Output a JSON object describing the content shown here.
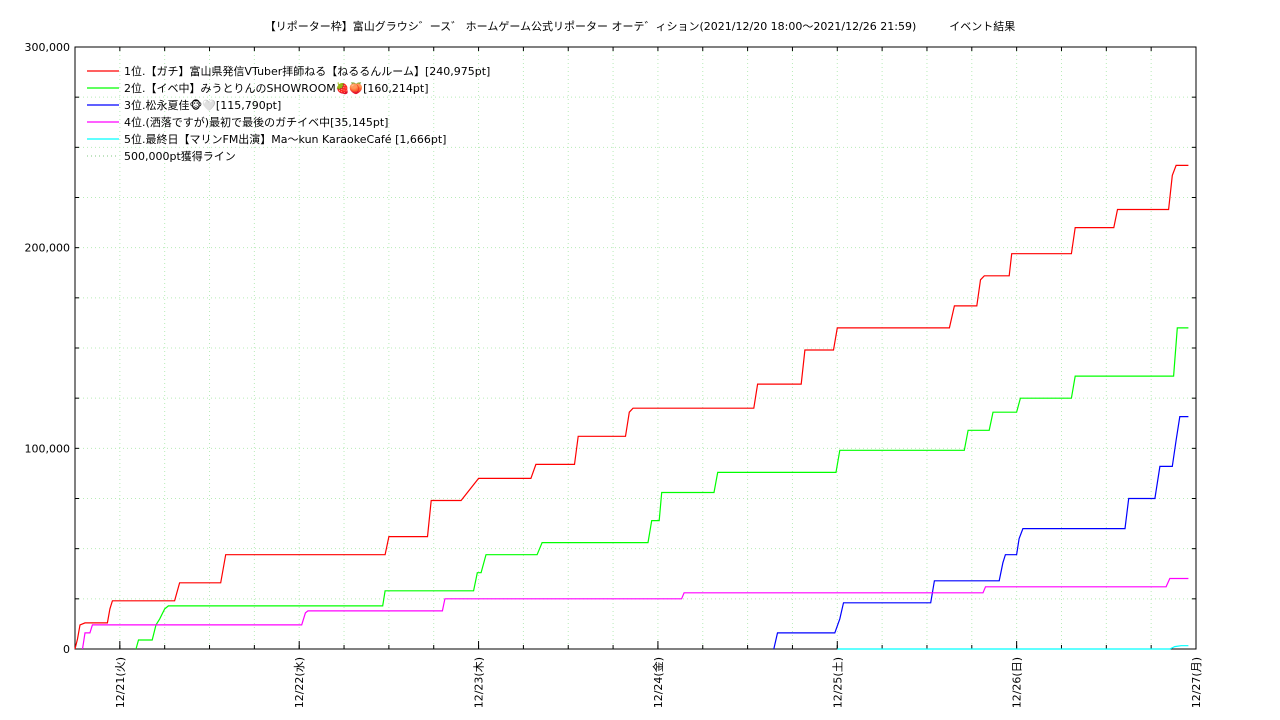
{
  "chart_data": {
    "type": "line",
    "title": "【リポーター枠】富山グラウシ゛ース゛ ホームゲーム公式リポーター オーテ゛ィション(2021/12/20 18:00〜2021/12/26 21:59)　　　イベント結果",
    "xlabel": "",
    "ylabel": "",
    "ylim": [
      0,
      300000
    ],
    "yticks": [
      0,
      100000,
      200000,
      300000
    ],
    "ytick_labels": [
      "0",
      "100,000",
      "200,000",
      "300,000"
    ],
    "xlim": [
      "2021/12/20 18:00",
      "2021/12/27 00:00"
    ],
    "xticks": [
      "2021/12/21 00:00",
      "2021/12/22 00:00",
      "2021/12/23 00:00",
      "2021/12/24 00:00",
      "2021/12/25 00:00",
      "2021/12/26 00:00",
      "2021/12/27 00:00"
    ],
    "xtick_labels": [
      "12/21(火)",
      "12/22(水)",
      "12/23(木)",
      "12/24(金)",
      "12/25(土)",
      "12/26(日)",
      "12/27(月)"
    ],
    "grid": true,
    "legend_position": "top-left",
    "series": [
      {
        "name": "1位.【ガチ】富山県発信VTuber拝師ねる【ねるるんルーム】[240,975pt]",
        "color": "#ff0000",
        "points": [
          [
            "2021/12/20 18:00",
            0
          ],
          [
            "2021/12/20 18:20",
            5000
          ],
          [
            "2021/12/20 18:40",
            12000
          ],
          [
            "2021/12/20 19:20",
            13000
          ],
          [
            "2021/12/20 22:20",
            13000
          ],
          [
            "2021/12/20 22:40",
            20000
          ],
          [
            "2021/12/20 23:00",
            24000
          ],
          [
            "2021/12/21 07:20",
            24000
          ],
          [
            "2021/12/21 08:00",
            33000
          ],
          [
            "2021/12/21 13:30",
            33000
          ],
          [
            "2021/12/21 14:10",
            47000
          ],
          [
            "2021/12/22 11:30",
            47000
          ],
          [
            "2021/12/22 12:00",
            56000
          ],
          [
            "2021/12/22 17:10",
            56000
          ],
          [
            "2021/12/22 17:40",
            74000
          ],
          [
            "2021/12/22 21:40",
            74000
          ],
          [
            "2021/12/23 00:00",
            85000
          ],
          [
            "2021/12/23 07:00",
            85000
          ],
          [
            "2021/12/23 07:40",
            92000
          ],
          [
            "2021/12/23 12:50",
            92000
          ],
          [
            "2021/12/23 13:20",
            106000
          ],
          [
            "2021/12/23 19:40",
            106000
          ],
          [
            "2021/12/23 20:10",
            118000
          ],
          [
            "2021/12/23 20:40",
            120000
          ],
          [
            "2021/12/24 12:50",
            120000
          ],
          [
            "2021/12/24 13:20",
            132000
          ],
          [
            "2021/12/24 19:10",
            132000
          ],
          [
            "2021/12/24 19:40",
            149000
          ],
          [
            "2021/12/24 23:30",
            149000
          ],
          [
            "2021/12/25 00:00",
            160000
          ],
          [
            "2021/12/25 15:00",
            160000
          ],
          [
            "2021/12/25 15:40",
            171000
          ],
          [
            "2021/12/25 18:40",
            171000
          ],
          [
            "2021/12/25 19:10",
            184000
          ],
          [
            "2021/12/25 19:40",
            186000
          ],
          [
            "2021/12/25 23:00",
            186000
          ],
          [
            "2021/12/25 23:20",
            197000
          ],
          [
            "2021/12/26 07:20",
            197000
          ],
          [
            "2021/12/26 07:50",
            210000
          ],
          [
            "2021/12/26 13:00",
            210000
          ],
          [
            "2021/12/26 13:30",
            219000
          ],
          [
            "2021/12/26 20:20",
            219000
          ],
          [
            "2021/12/26 20:50",
            236000
          ],
          [
            "2021/12/26 21:20",
            241000
          ],
          [
            "2021/12/26 22:59",
            241000
          ]
        ]
      },
      {
        "name": "2位.【イベ中】みうとりんのSHOWROOM🍓🍑[160,214pt]",
        "color": "#00ff00",
        "points": [
          [
            "2021/12/21 02:10",
            0
          ],
          [
            "2021/12/21 02:30",
            4500
          ],
          [
            "2021/12/21 04:20",
            4500
          ],
          [
            "2021/12/21 04:50",
            12000
          ],
          [
            "2021/12/21 05:20",
            15000
          ],
          [
            "2021/12/21 06:00",
            20000
          ],
          [
            "2021/12/21 06:30",
            21500
          ],
          [
            "2021/12/22 11:10",
            21500
          ],
          [
            "2021/12/22 11:30",
            29000
          ],
          [
            "2021/12/22 23:20",
            29000
          ],
          [
            "2021/12/22 23:50",
            38000
          ],
          [
            "2021/12/23 00:20",
            38000
          ],
          [
            "2021/12/23 01:00",
            47000
          ],
          [
            "2021/12/23 07:50",
            47000
          ],
          [
            "2021/12/23 08:30",
            53000
          ],
          [
            "2021/12/23 22:40",
            53000
          ],
          [
            "2021/12/23 23:10",
            64000
          ],
          [
            "2021/12/24 00:10",
            64000
          ],
          [
            "2021/12/24 00:30",
            78000
          ],
          [
            "2021/12/24 07:30",
            78000
          ],
          [
            "2021/12/24 08:00",
            88000
          ],
          [
            "2021/12/24 23:50",
            88000
          ],
          [
            "2021/12/25 00:20",
            99000
          ],
          [
            "2021/12/25 17:00",
            99000
          ],
          [
            "2021/12/25 17:30",
            109000
          ],
          [
            "2021/12/25 20:20",
            109000
          ],
          [
            "2021/12/25 20:50",
            118000
          ],
          [
            "2021/12/26 00:00",
            118000
          ],
          [
            "2021/12/26 00:30",
            125000
          ],
          [
            "2021/12/26 07:20",
            125000
          ],
          [
            "2021/12/26 07:50",
            136000
          ],
          [
            "2021/12/26 21:00",
            136000
          ],
          [
            "2021/12/26 21:30",
            160000
          ],
          [
            "2021/12/26 22:59",
            160000
          ]
        ]
      },
      {
        "name": "3位.松永夏佳🐵🤍[115,790pt]",
        "color": "#0000ff",
        "points": [
          [
            "2021/12/24 15:30",
            0
          ],
          [
            "2021/12/24 16:00",
            8000
          ],
          [
            "2021/12/24 23:40",
            8000
          ],
          [
            "2021/12/25 00:20",
            15000
          ],
          [
            "2021/12/25 00:50",
            23000
          ],
          [
            "2021/12/25 12:30",
            23000
          ],
          [
            "2021/12/25 13:00",
            34000
          ],
          [
            "2021/12/25 21:40",
            34000
          ],
          [
            "2021/12/25 22:10",
            43000
          ],
          [
            "2021/12/25 22:30",
            47000
          ],
          [
            "2021/12/26 00:00",
            47000
          ],
          [
            "2021/12/26 00:20",
            55000
          ],
          [
            "2021/12/26 00:50",
            60000
          ],
          [
            "2021/12/26 14:30",
            60000
          ],
          [
            "2021/12/26 15:00",
            75000
          ],
          [
            "2021/12/26 18:30",
            75000
          ],
          [
            "2021/12/26 19:10",
            91000
          ],
          [
            "2021/12/26 20:50",
            91000
          ],
          [
            "2021/12/26 21:20",
            104000
          ],
          [
            "2021/12/26 21:50",
            115790
          ],
          [
            "2021/12/26 22:59",
            115790
          ]
        ]
      },
      {
        "name": "4位.(洒落ですが)最初で最後のガチイベ中[35,145pt]",
        "color": "#ff00ff",
        "points": [
          [
            "2021/12/20 19:00",
            0
          ],
          [
            "2021/12/20 19:20",
            8000
          ],
          [
            "2021/12/20 20:00",
            8000
          ],
          [
            "2021/12/20 20:20",
            12000
          ],
          [
            "2021/12/22 00:20",
            12000
          ],
          [
            "2021/12/22 00:50",
            18000
          ],
          [
            "2021/12/22 01:10",
            19000
          ],
          [
            "2021/12/22 19:10",
            19000
          ],
          [
            "2021/12/22 19:30",
            25000
          ],
          [
            "2021/12/24 03:10",
            25000
          ],
          [
            "2021/12/24 03:30",
            28000
          ],
          [
            "2021/12/25 19:30",
            28000
          ],
          [
            "2021/12/25 19:50",
            31000
          ],
          [
            "2021/12/26 20:00",
            31000
          ],
          [
            "2021/12/26 20:30",
            35145
          ],
          [
            "2021/12/26 22:59",
            35145
          ]
        ]
      },
      {
        "name": "5位.最終日【マリンFM出演】Ma〜kun KaraokeCafé [1,666pt]",
        "color": "#00ffff",
        "points": [
          [
            "2021/12/25 00:00",
            0
          ],
          [
            "2021/12/26 20:30",
            0
          ],
          [
            "2021/12/26 21:10",
            1200
          ],
          [
            "2021/12/26 22:00",
            1666
          ],
          [
            "2021/12/26 22:59",
            1666
          ]
        ]
      },
      {
        "name": "500,000pt獲得ライン",
        "color": "#aaaaaa",
        "dashed": true,
        "points": []
      }
    ]
  }
}
